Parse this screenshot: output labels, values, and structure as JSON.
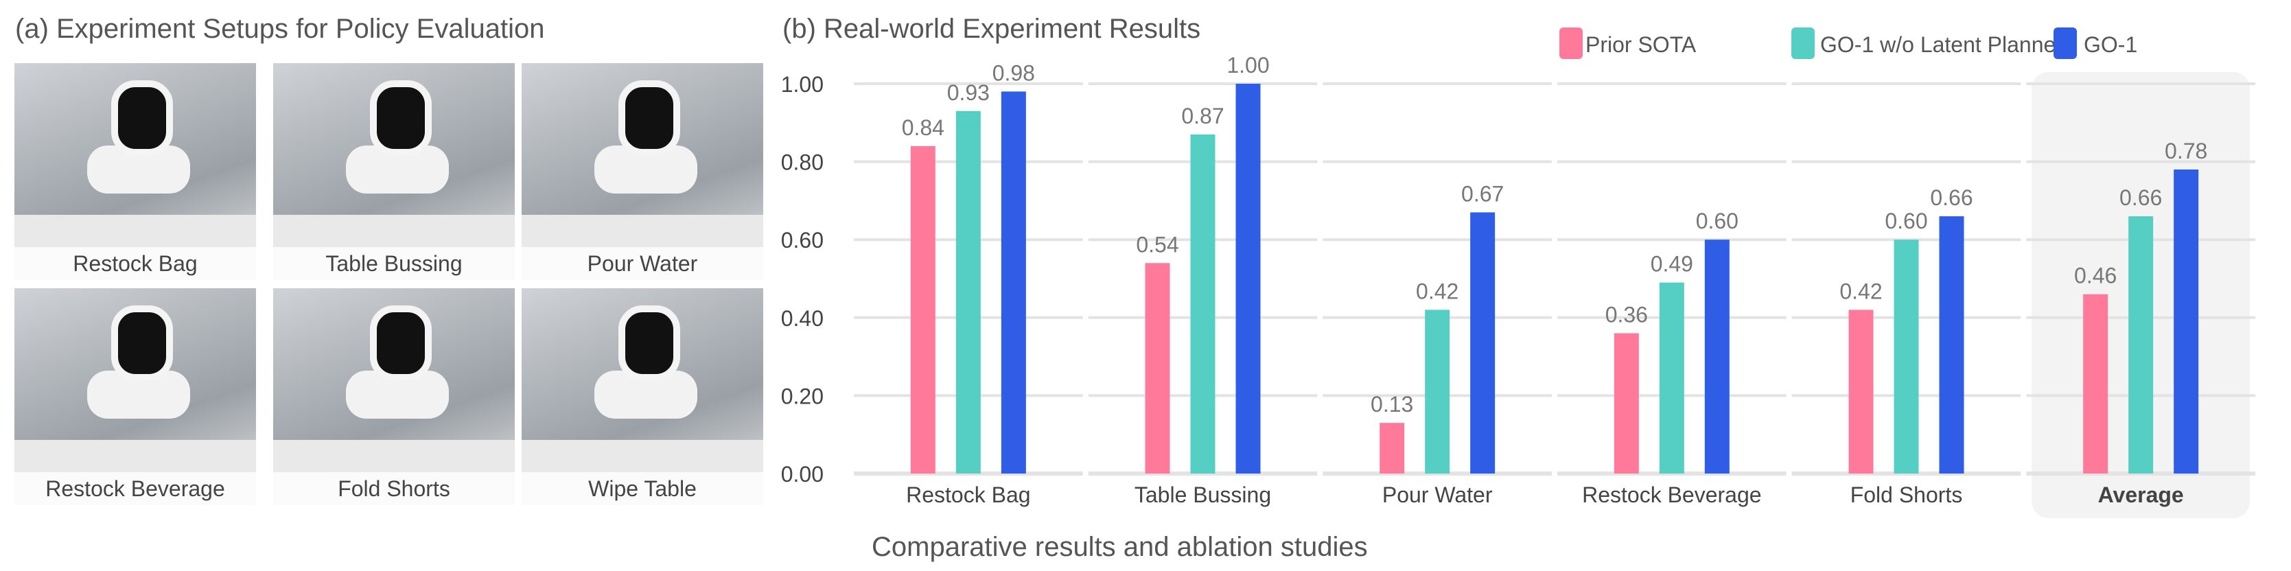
{
  "panel_a": {
    "title": "(a) Experiment Setups for Policy Evaluation",
    "photos": [
      "Restock Bag",
      "Table Bussing",
      "Pour Water",
      "Restock Beverage",
      "Fold Shorts",
      "Wipe Table"
    ]
  },
  "chart_data": {
    "type": "bar",
    "title": "(b) Real-world Experiment Results",
    "caption": "Comparative results and ablation studies",
    "categories": [
      "Restock Bag",
      "Table Bussing",
      "Pour Water",
      "Restock Beverage",
      "Fold Shorts",
      "Average"
    ],
    "highlighted_category": "Average",
    "series": [
      {
        "name": "Prior SOTA",
        "color": "#ff7a9a",
        "values": [
          0.84,
          0.54,
          0.13,
          0.36,
          0.42,
          0.46
        ]
      },
      {
        "name": "GO-1 w/o Latent Planner",
        "color": "#55cfc4",
        "values": [
          0.93,
          0.87,
          0.42,
          0.49,
          0.6,
          0.66
        ]
      },
      {
        "name": "GO-1",
        "color": "#2f5de6",
        "values": [
          0.98,
          1.0,
          0.67,
          0.6,
          0.66,
          0.78
        ]
      }
    ],
    "yticks": [
      "0.00",
      "0.20",
      "0.40",
      "0.60",
      "0.80",
      "1.00"
    ],
    "ylim": [
      0,
      1
    ],
    "grid": true,
    "legend": "top-right"
  }
}
